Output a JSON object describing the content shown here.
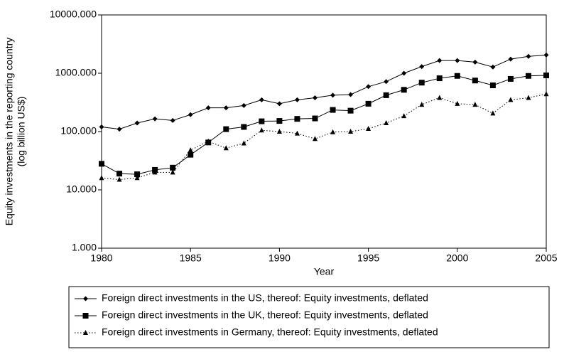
{
  "chart_data": {
    "type": "line",
    "y_label": [
      "Equity investments in the reporting country",
      "(log billion US$)"
    ],
    "x_label": "Year",
    "x": [
      1980,
      1981,
      1982,
      1983,
      1984,
      1985,
      1986,
      1987,
      1988,
      1989,
      1990,
      1991,
      1992,
      1993,
      1994,
      1995,
      1996,
      1997,
      1998,
      1999,
      2000,
      2001,
      2002,
      2003,
      2004,
      2005
    ],
    "series": [
      {
        "name": "Foreign direct investments in the US, thereof: Equity investments, deflated",
        "color": "#000000",
        "marker": "diamond",
        "dash": "solid",
        "values": [
          120,
          110,
          140,
          165,
          155,
          195,
          255,
          255,
          280,
          350,
          300,
          350,
          380,
          420,
          430,
          590,
          720,
          1000,
          1300,
          1650,
          1650,
          1550,
          1280,
          1750,
          1950,
          2050
        ]
      },
      {
        "name": "Foreign direct investments in the UK, thereof: Equity investments, deflated",
        "color": "#000000",
        "marker": "square",
        "dash": "solid",
        "values": [
          28,
          19,
          18.5,
          22,
          24,
          40,
          65,
          110,
          120,
          150,
          152,
          165,
          168,
          235,
          228,
          300,
          420,
          520,
          690,
          820,
          900,
          750,
          620,
          800,
          900,
          920
        ]
      },
      {
        "name": "Foreign direct investments in Germany, thereof: Equity investments, deflated",
        "color": "#000000",
        "marker": "triangle",
        "dash": "dotted",
        "values": [
          16,
          15,
          16,
          20,
          20,
          48,
          68,
          52,
          63,
          105,
          100,
          93,
          75,
          98,
          100,
          112,
          140,
          185,
          290,
          380,
          300,
          290,
          205,
          350,
          380,
          440
        ]
      }
    ],
    "xlim": [
      1980,
      2005
    ],
    "xticks": [
      1980,
      1985,
      1990,
      1995,
      2000,
      2005
    ],
    "ylim": [
      1,
      10000
    ],
    "yticks": [
      {
        "value": 1,
        "label": "1.000"
      },
      {
        "value": 10,
        "label": "10.000"
      },
      {
        "value": 100,
        "label": "100.000"
      },
      {
        "value": 1000,
        "label": "1000.000"
      },
      {
        "value": 10000,
        "label": "10000.000"
      }
    ],
    "log_y": true,
    "grid": false,
    "legend": "bottom"
  }
}
